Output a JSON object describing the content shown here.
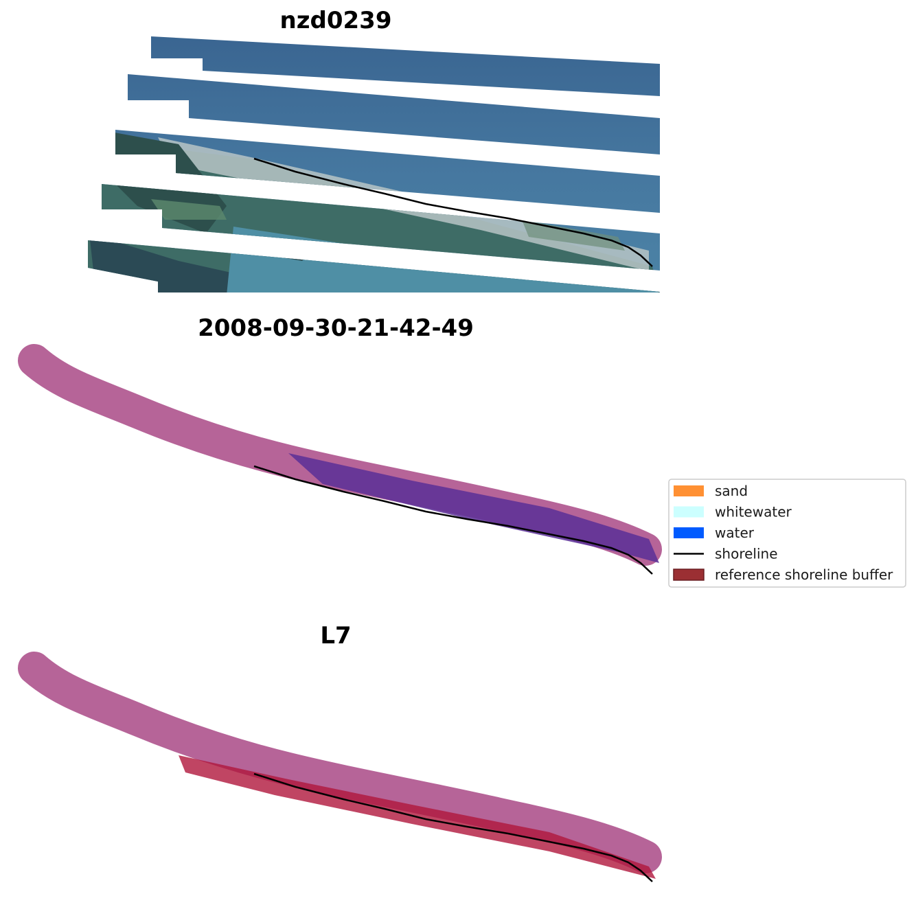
{
  "panels": [
    {
      "title": "nzd0239",
      "kind": "rgb"
    },
    {
      "title": "2008-09-30-21-42-49",
      "kind": "classification"
    },
    {
      "title": "L7",
      "kind": "probability"
    }
  ],
  "legend": {
    "items": [
      {
        "label": "sand",
        "color": "#ff9033",
        "type": "patch"
      },
      {
        "label": "whitewater",
        "color": "#ccffff",
        "type": "patch"
      },
      {
        "label": "water",
        "color": "#005bff",
        "type": "patch"
      },
      {
        "label": "shoreline",
        "color": "#000000",
        "type": "line"
      },
      {
        "label": "reference shoreline buffer",
        "color": "#9b2f33",
        "type": "patch"
      }
    ]
  },
  "colors": {
    "ocean": "#3f6b94",
    "ocean_light": "#4a7ea3",
    "lagoon": "#4e90a8",
    "land": "#3c6a5e",
    "forest": "#2c4f4a",
    "urban": "#c9d2d7",
    "water_class": "#005bff",
    "buffer": "#b25c92",
    "buffer_overlap": "#5a2f96",
    "prob_water": "#a9acec",
    "prob_land": "#ff1616",
    "prob_overlap": "#b0163c",
    "shoreline": "#000000"
  }
}
